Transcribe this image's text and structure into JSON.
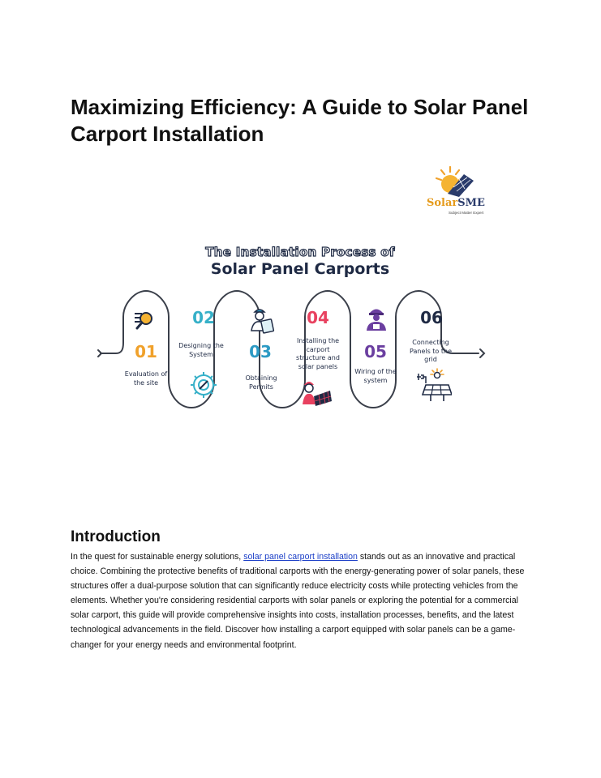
{
  "title": "Maximizing Efficiency: A Guide to Solar Panel Carport Installation",
  "logo": {
    "part1": "Solar",
    "part2": "SME",
    "tagline": "Subject Matter Expert"
  },
  "infographic": {
    "heading_line1": "The Installation Process of",
    "heading_line2": "Solar Panel Carports",
    "steps": [
      {
        "number": "01",
        "label": "Evaluation of the site",
        "color": "#f0a12b",
        "icon": "magnifier-icon"
      },
      {
        "number": "02",
        "label": "Designing the System",
        "color": "#36b0c8",
        "icon": "gear-icon"
      },
      {
        "number": "03",
        "label": "Obtaining Permits",
        "color": "#2c9ac4",
        "icon": "clipboard-worker-icon"
      },
      {
        "number": "04",
        "label": "Installing the carport structure and solar panels",
        "color": "#e8415f",
        "icon": "installer-icon"
      },
      {
        "number": "05",
        "label": "Wiring of the system",
        "color": "#6b3fa0",
        "icon": "electrician-icon"
      },
      {
        "number": "06",
        "label": "Connecting Panels to the grid",
        "color": "#1f2a44",
        "icon": "grid-panel-icon"
      }
    ]
  },
  "introduction": {
    "heading": "Introduction",
    "text_before_link": "In the quest for sustainable energy solutions, ",
    "link_text": "solar panel carport installation",
    "text_after_link": " stands out as an innovative and practical choice. Combining the protective benefits of traditional carports with the energy-generating power of solar panels, these structures offer a dual-purpose solution that can significantly reduce electricity costs while protecting vehicles from the elements.  Whether you're considering residential carports with solar panels or exploring the potential for a commercial solar carport, this guide will provide comprehensive insights into costs, installation processes, benefits, and the latest technological advancements in the field. Discover how installing a carport equipped with solar panels can be a game-changer for your energy needs and environmental footprint."
  }
}
